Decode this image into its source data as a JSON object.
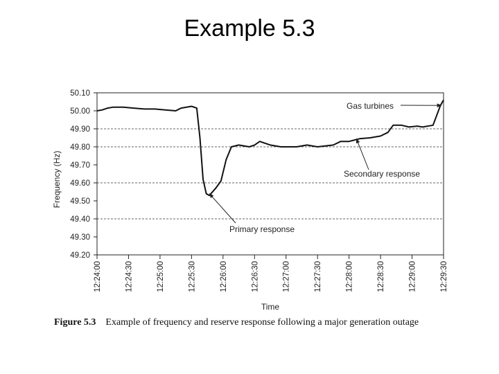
{
  "slide": {
    "title": "Example 5.3"
  },
  "caption": {
    "figure": "Figure 5.3",
    "text": "Example of frequency and reserve response following a major generation outage"
  },
  "chart_data": {
    "type": "line",
    "title": "",
    "xlabel": "Time",
    "ylabel": "Frequency (Hz)",
    "xlim": [
      "12:24:00",
      "12:29:30"
    ],
    "ylim": [
      49.2,
      50.1
    ],
    "yticks": [
      49.2,
      49.3,
      49.4,
      49.5,
      49.6,
      49.7,
      49.8,
      49.9,
      50.0,
      50.1
    ],
    "ytick_labels": [
      "49.20",
      "49.30",
      "49.40",
      "49.50",
      "49.60",
      "49.70",
      "49.80",
      "49.90",
      "50.00",
      "50.10"
    ],
    "xtick_labels": [
      "12:24:00",
      "12:24:30",
      "12:25:00",
      "12:25:30",
      "12:26:00",
      "12:26:30",
      "12:27:00",
      "12:27:30",
      "12:28:00",
      "12:28:30",
      "12:29:00",
      "12:29:30"
    ],
    "dashed_gridlines": [
      49.9,
      49.8,
      49.6,
      49.4
    ],
    "series": [
      {
        "points": [
          [
            "12:24:00",
            50.0
          ],
          [
            "12:24:05",
            50.005
          ],
          [
            "12:24:10",
            50.015
          ],
          [
            "12:24:15",
            50.02
          ],
          [
            "12:24:25",
            50.02
          ],
          [
            "12:24:35",
            50.015
          ],
          [
            "12:24:45",
            50.01
          ],
          [
            "12:24:55",
            50.01
          ],
          [
            "12:25:05",
            50.005
          ],
          [
            "12:25:15",
            50.0
          ],
          [
            "12:25:20",
            50.015
          ],
          [
            "12:25:30",
            50.025
          ],
          [
            "12:25:35",
            50.015
          ],
          [
            "12:25:38",
            49.85
          ],
          [
            "12:25:41",
            49.62
          ],
          [
            "12:25:44",
            49.54
          ],
          [
            "12:25:47",
            49.53
          ],
          [
            "12:25:53",
            49.57
          ],
          [
            "12:25:58",
            49.61
          ],
          [
            "12:26:03",
            49.73
          ],
          [
            "12:26:08",
            49.8
          ],
          [
            "12:26:15",
            49.81
          ],
          [
            "12:26:25",
            49.8
          ],
          [
            "12:26:30",
            49.81
          ],
          [
            "12:26:35",
            49.83
          ],
          [
            "12:26:45",
            49.81
          ],
          [
            "12:26:55",
            49.8
          ],
          [
            "12:27:10",
            49.8
          ],
          [
            "12:27:20",
            49.81
          ],
          [
            "12:27:30",
            49.8
          ],
          [
            "12:27:45",
            49.81
          ],
          [
            "12:27:52",
            49.83
          ],
          [
            "12:28:00",
            49.83
          ],
          [
            "12:28:10",
            49.845
          ],
          [
            "12:28:20",
            49.85
          ],
          [
            "12:28:30",
            49.86
          ],
          [
            "12:28:37",
            49.88
          ],
          [
            "12:28:42",
            49.92
          ],
          [
            "12:28:50",
            49.92
          ],
          [
            "12:28:57",
            49.91
          ],
          [
            "12:29:05",
            49.915
          ],
          [
            "12:29:10",
            49.91
          ],
          [
            "12:29:20",
            49.92
          ],
          [
            "12:29:27",
            50.03
          ],
          [
            "12:29:30",
            50.06
          ]
        ]
      }
    ],
    "annotations": [
      {
        "text": "Gas turbines",
        "arrow_to": [
          "12:29:28",
          50.03
        ]
      },
      {
        "text": "Secondary response",
        "arrow_to": [
          "12:28:07",
          49.845
        ]
      },
      {
        "text": "Primary response",
        "arrow_to": [
          "12:25:47",
          49.54
        ]
      }
    ]
  }
}
